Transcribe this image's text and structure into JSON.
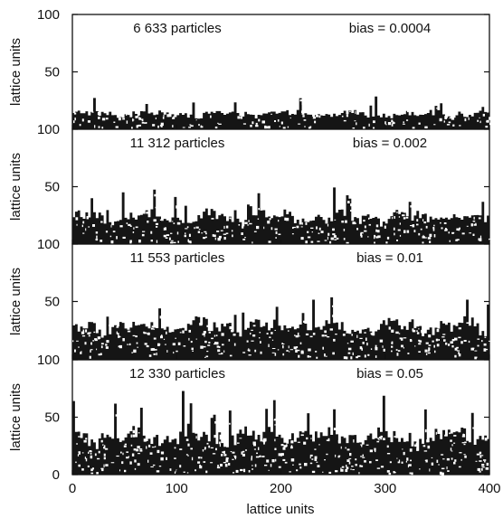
{
  "chart_data": {
    "type": "heatmap",
    "xlabel": "lattice units",
    "xlim": [
      0,
      400
    ],
    "xticks": [
      "0",
      "100",
      "200",
      "300",
      "400"
    ],
    "ink_color": "#151515",
    "background": "#ffffff",
    "panels": [
      {
        "ylabel": "lattice units",
        "ylim": [
          0,
          100
        ],
        "yticks": [
          "50",
          "100"
        ],
        "particles_label": "6 633 particles",
        "bias_label": "bias = 0.0004",
        "particles": 6633,
        "bias": 0.0004,
        "mean_height": 16,
        "max_height": 30
      },
      {
        "ylabel": "lattice units",
        "ylim": [
          0,
          100
        ],
        "yticks": [
          "50",
          "100"
        ],
        "particles_label": "11 312 particles",
        "bias_label": "bias = 0.002",
        "particles": 11312,
        "bias": 0.002,
        "mean_height": 28,
        "max_height": 50
      },
      {
        "ylabel": "lattice units",
        "ylim": [
          0,
          100
        ],
        "yticks": [
          "50",
          "100"
        ],
        "particles_label": "11 553 particles",
        "bias_label": "bias = 0.01",
        "particles": 11553,
        "bias": 0.01,
        "mean_height": 34,
        "max_height": 55
      },
      {
        "ylabel": "lattice units",
        "ylim": [
          0,
          100
        ],
        "yticks": [
          "0",
          "50",
          "100"
        ],
        "particles_label": "12 330 particles",
        "bias_label": "bias = 0.05",
        "particles": 12330,
        "bias": 0.05,
        "mean_height": 40,
        "max_height": 75
      }
    ]
  }
}
